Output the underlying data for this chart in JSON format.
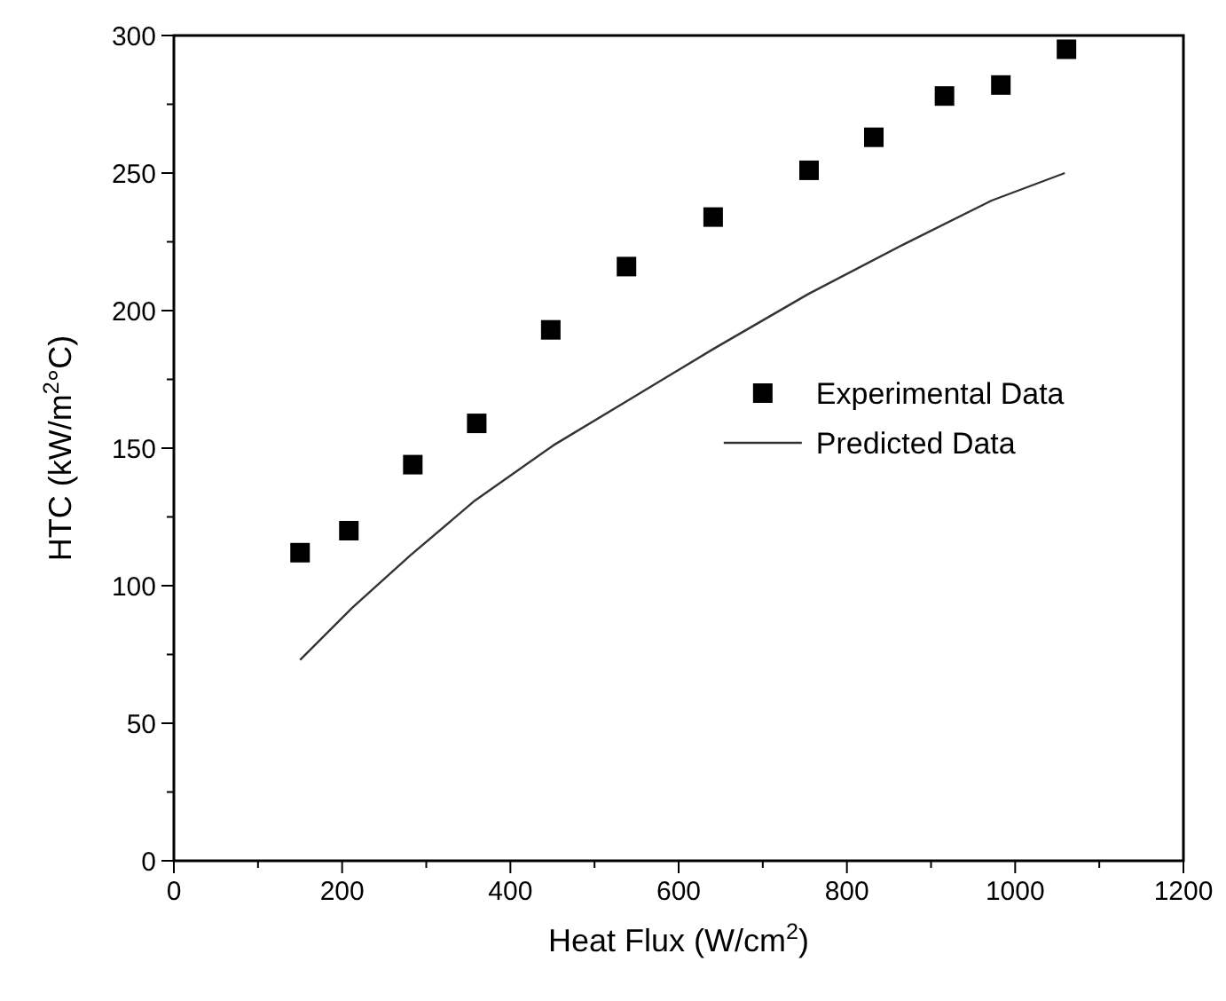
{
  "chart_data": {
    "type": "scatter",
    "xlabel": "Heat Flux (W/cm$^{2}$)",
    "ylabel": "HTC (kW/m$^{2}$°C)",
    "xlim": [
      0,
      1200
    ],
    "ylim": [
      0,
      300
    ],
    "xticks": [
      0,
      {
        "value": 100,
        "label": null
      },
      200,
      {
        "value": 300,
        "label": null
      },
      400,
      {
        "value": 500,
        "label": null
      },
      600,
      {
        "value": 700,
        "label": null
      },
      800,
      {
        "value": 900,
        "label": null
      },
      1000,
      {
        "value": 1100,
        "label": null
      },
      1200
    ],
    "yticks": [
      0,
      {
        "value": 25,
        "label": null
      },
      50,
      {
        "value": 75,
        "label": null
      },
      100,
      {
        "value": 125,
        "label": null
      },
      150,
      {
        "value": 175,
        "label": null
      },
      200,
      {
        "value": 225,
        "label": null
      },
      250,
      {
        "value": 275,
        "label": null
      },
      300
    ],
    "grid": false,
    "legend": "right",
    "series": [
      {
        "name": "Experimental Data",
        "marker": "square",
        "color": "#000000",
        "x": [
          150,
          208,
          284,
          360,
          448,
          538,
          641,
          755,
          832,
          916,
          983,
          1061
        ],
        "values": [
          112,
          120,
          144,
          159,
          193,
          216,
          234,
          251,
          263,
          278,
          282,
          295
        ]
      },
      {
        "name": "Predicted Data",
        "type": "line",
        "marker": "none",
        "color": "#333333",
        "x": [
          150,
          212,
          281,
          358,
          451,
          538,
          641,
          754,
          867,
          972,
          1059
        ],
        "values": [
          73,
          92,
          111,
          131,
          151,
          167,
          186,
          206,
          224,
          240,
          250
        ]
      }
    ]
  }
}
